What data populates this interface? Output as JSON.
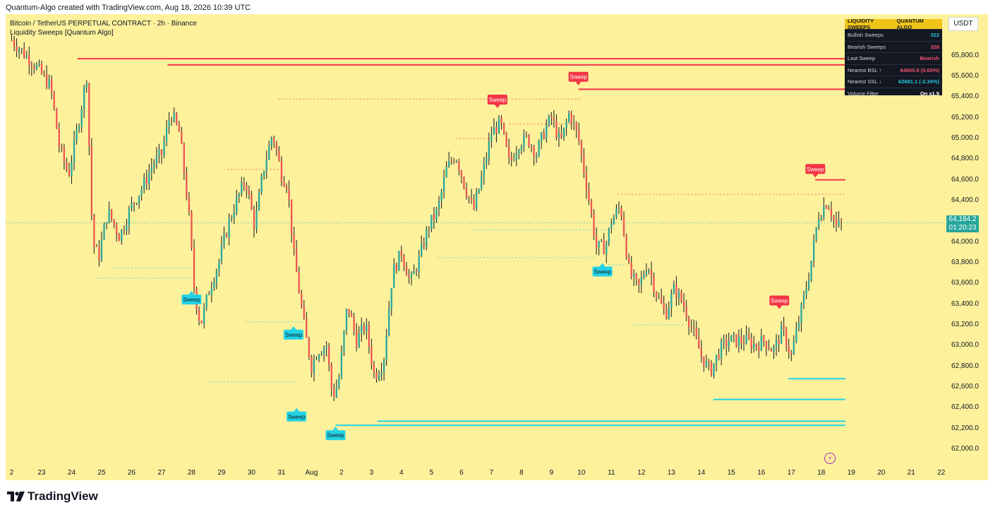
{
  "header": {
    "created_line": "Quantum-Algo created with TradingView.com, Aug 18, 2026 10:39 UTC",
    "symbol_line": "Bitcoin / TetherUS PERPETUAL CONTRACT · 2h · Binance",
    "indicator_line": "Liquidity Sweeps [Quantum Algo]"
  },
  "axis": {
    "currency": "USDT",
    "last_price": "64,184.2",
    "countdown": "01:20:23"
  },
  "panel": {
    "title_left": "LIQUIDITY SWEEPS",
    "title_right": "QUANTUM ALGO",
    "rows": [
      {
        "label": "Bullish Sweeps",
        "value": "322",
        "color": "#26c6da"
      },
      {
        "label": "Bearish Sweeps",
        "value": "328",
        "color": "#ef5370"
      },
      {
        "label": "Last Sweep",
        "value": "Bearish",
        "color": "#ef5370"
      },
      {
        "label": "Nearest BSL ↑",
        "value": "64600.8  (0.65%)",
        "color": "#ef5370"
      },
      {
        "label": "Nearest SSL ↓",
        "value": "62681.1  (-2.34%)",
        "color": "#26c6da"
      },
      {
        "label": "Volume Filter",
        "value": "On  x1.5",
        "color": "#ffffff"
      }
    ]
  },
  "branding": {
    "logo_text": "TradingView",
    "logo_icon": "tradingview-logo-icon",
    "bolt_icon": "lightning-icon"
  },
  "chart_data": {
    "type": "candlestick",
    "title": "Bitcoin / TetherUS PERPETUAL CONTRACT · 2h · Binance",
    "ylim": [
      61850,
      66200
    ],
    "y_ticks": [
      "62,000.0",
      "62,200.0",
      "62,400.0",
      "62,600.0",
      "62,800.0",
      "63,000.0",
      "63,200.0",
      "63,400.0",
      "63,600.0",
      "63,800.0",
      "64,000.0",
      "64,200.0",
      "64,400.0",
      "64,600.0",
      "64,800.0",
      "65,000.0",
      "65,200.0",
      "65,400.0",
      "65,600.0",
      "65,800.0"
    ],
    "x_ticks": [
      "2",
      "23",
      "24",
      "25",
      "26",
      "27",
      "28",
      "29",
      "30",
      "31",
      "Aug",
      "2",
      "3",
      "4",
      "5",
      "6",
      "7",
      "8",
      "9",
      "10",
      "11",
      "12",
      "13",
      "14",
      "15",
      "16",
      "17",
      "18",
      "19",
      "20",
      "21",
      "22"
    ],
    "x_domain_days": [
      -0.2,
      31.1
    ],
    "last_price": 64184.2,
    "bull_color": "#26a69a",
    "bear_color": "#ef5350",
    "bsl_color": "#f23645",
    "ssl_color": "#22d3e6",
    "path_points": [
      [
        0.0,
        65950
      ],
      [
        0.8,
        65700
      ],
      [
        1.3,
        65500
      ],
      [
        1.6,
        64900
      ],
      [
        1.9,
        64650
      ],
      [
        2.2,
        65100
      ],
      [
        2.5,
        65600
      ],
      [
        2.7,
        64000
      ],
      [
        2.9,
        63850
      ],
      [
        3.2,
        64300
      ],
      [
        3.6,
        64050
      ],
      [
        4.0,
        64350
      ],
      [
        4.4,
        64550
      ],
      [
        4.7,
        64750
      ],
      [
        5.0,
        64850
      ],
      [
        5.3,
        65250
      ],
      [
        5.6,
        65050
      ],
      [
        5.9,
        64300
      ],
      [
        6.1,
        63500
      ],
      [
        6.3,
        63200
      ],
      [
        6.6,
        63550
      ],
      [
        6.9,
        63800
      ],
      [
        7.2,
        64150
      ],
      [
        7.5,
        64400
      ],
      [
        7.8,
        64600
      ],
      [
        8.1,
        64150
      ],
      [
        8.4,
        64700
      ],
      [
        8.7,
        65050
      ],
      [
        9.0,
        64650
      ],
      [
        9.2,
        64550
      ],
      [
        9.4,
        63900
      ],
      [
        9.6,
        63500
      ],
      [
        9.8,
        63100
      ],
      [
        10.0,
        62800
      ],
      [
        10.2,
        62950
      ],
      [
        10.5,
        63000
      ],
      [
        10.7,
        62500
      ],
      [
        10.9,
        62650
      ],
      [
        11.2,
        63400
      ],
      [
        11.5,
        63050
      ],
      [
        11.8,
        63200
      ],
      [
        12.1,
        62700
      ],
      [
        12.4,
        62850
      ],
      [
        12.7,
        63700
      ],
      [
        13.0,
        63900
      ],
      [
        13.3,
        63600
      ],
      [
        13.6,
        63850
      ],
      [
        13.9,
        64150
      ],
      [
        14.2,
        64300
      ],
      [
        14.5,
        64700
      ],
      [
        14.8,
        64850
      ],
      [
        15.1,
        64550
      ],
      [
        15.4,
        64300
      ],
      [
        15.7,
        64650
      ],
      [
        16.0,
        65050
      ],
      [
        16.3,
        65150
      ],
      [
        16.6,
        64750
      ],
      [
        16.9,
        64950
      ],
      [
        17.2,
        65000
      ],
      [
        17.5,
        64850
      ],
      [
        17.8,
        65100
      ],
      [
        18.0,
        65200
      ],
      [
        18.3,
        64950
      ],
      [
        18.6,
        65250
      ],
      [
        18.9,
        65000
      ],
      [
        19.2,
        64500
      ],
      [
        19.5,
        63950
      ],
      [
        19.8,
        63950
      ],
      [
        20.0,
        64200
      ],
      [
        20.3,
        64350
      ],
      [
        20.6,
        63700
      ],
      [
        20.9,
        63550
      ],
      [
        21.2,
        63800
      ],
      [
        21.5,
        63500
      ],
      [
        21.8,
        63300
      ],
      [
        22.1,
        63550
      ],
      [
        22.4,
        63400
      ],
      [
        22.7,
        63150
      ],
      [
        23.0,
        62900
      ],
      [
        23.3,
        62750
      ],
      [
        23.6,
        62950
      ],
      [
        23.9,
        63050
      ],
      [
        24.2,
        63050
      ],
      [
        24.5,
        63050
      ],
      [
        24.8,
        63000
      ],
      [
        25.1,
        63050
      ],
      [
        25.4,
        62950
      ],
      [
        25.7,
        63150
      ],
      [
        26.0,
        62900
      ],
      [
        26.3,
        63300
      ],
      [
        26.6,
        63700
      ],
      [
        26.9,
        64250
      ],
      [
        27.2,
        64400
      ],
      [
        27.5,
        64150
      ],
      [
        27.7,
        64184.2
      ]
    ],
    "bsl_levels": [
      {
        "from": 2.2,
        "to": 27.8,
        "price": 65770,
        "style": "solid",
        "swept": false
      },
      {
        "from": 5.2,
        "to": 27.8,
        "price": 65710,
        "style": "solid",
        "swept": false
      },
      {
        "from": 18.9,
        "to": 27.8,
        "price": 65475,
        "style": "solid",
        "swept": false
      },
      {
        "from": 26.8,
        "to": 27.8,
        "price": 64600,
        "style": "solid",
        "swept": false
      },
      {
        "from": 8.9,
        "to": 19.0,
        "price": 65380,
        "style": "dotted",
        "swept": true
      },
      {
        "from": 14.8,
        "to": 16.2,
        "price": 65000,
        "style": "dotted",
        "swept": true
      },
      {
        "from": 16.6,
        "to": 18.7,
        "price": 65140,
        "style": "dotted",
        "swept": true
      },
      {
        "from": 20.2,
        "to": 27.8,
        "price": 64460,
        "style": "dotted",
        "swept": true
      },
      {
        "from": 7.2,
        "to": 9.1,
        "price": 64700,
        "style": "dotted",
        "swept": true
      }
    ],
    "ssl_levels": [
      {
        "from": 12.2,
        "to": 27.8,
        "price": 62270,
        "style": "solid",
        "swept": false
      },
      {
        "from": 10.8,
        "to": 27.8,
        "price": 62230,
        "style": "solid",
        "swept": false
      },
      {
        "from": 23.4,
        "to": 27.8,
        "price": 62480,
        "style": "solid",
        "swept": false
      },
      {
        "from": 25.9,
        "to": 27.8,
        "price": 62680,
        "style": "solid",
        "swept": false
      },
      {
        "from": 2.8,
        "to": 6.0,
        "price": 63650,
        "style": "dotted",
        "swept": true
      },
      {
        "from": 3.4,
        "to": 6.0,
        "price": 63750,
        "style": "dotted",
        "swept": true
      },
      {
        "from": 6.6,
        "to": 9.6,
        "price": 62650,
        "style": "dotted",
        "swept": true
      },
      {
        "from": 7.8,
        "to": 9.8,
        "price": 63230,
        "style": "dotted",
        "swept": true
      },
      {
        "from": 14.2,
        "to": 19.5,
        "price": 63850,
        "style": "dotted",
        "swept": true
      },
      {
        "from": 15.4,
        "to": 19.8,
        "price": 64120,
        "style": "dotted",
        "swept": true
      },
      {
        "from": 20.7,
        "to": 22.5,
        "price": 63200,
        "style": "dotted",
        "swept": true
      },
      {
        "from": 19.9,
        "to": 20.5,
        "price": 63780,
        "style": "dotted",
        "swept": true
      }
    ],
    "sweep_labels": [
      {
        "day": 6.0,
        "price": 63520,
        "text": "Sweep",
        "kind": "bull"
      },
      {
        "day": 9.4,
        "price": 63180,
        "text": "Sweep",
        "kind": "bull"
      },
      {
        "day": 9.5,
        "price": 62390,
        "text": "Sweep",
        "kind": "bull"
      },
      {
        "day": 10.8,
        "price": 62210,
        "text": "Sweep",
        "kind": "bull"
      },
      {
        "day": 19.7,
        "price": 63790,
        "text": "Sweep",
        "kind": "bull"
      },
      {
        "day": 16.2,
        "price": 65300,
        "text": "Sweep",
        "kind": "bear"
      },
      {
        "day": 18.9,
        "price": 65520,
        "text": "Sweep",
        "kind": "bear"
      },
      {
        "day": 25.6,
        "price": 63360,
        "text": "Sweep",
        "kind": "bear"
      },
      {
        "day": 26.8,
        "price": 64630,
        "text": "Sweep",
        "kind": "bear"
      }
    ]
  }
}
